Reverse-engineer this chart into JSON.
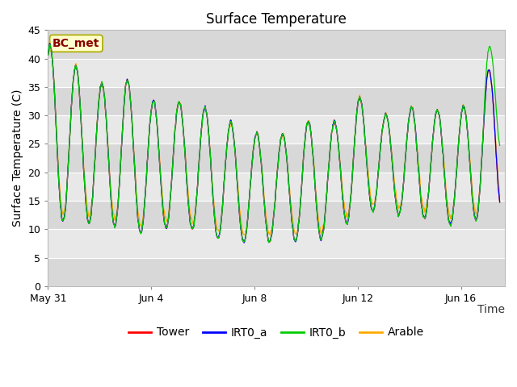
{
  "title": "Surface Temperature",
  "ylabel": "Surface Temperature (C)",
  "xlabel": "Time",
  "ylim": [
    0,
    45
  ],
  "yticks": [
    0,
    5,
    10,
    15,
    20,
    25,
    30,
    35,
    40,
    45
  ],
  "xtick_labels": [
    "May 31",
    "Jun 4",
    "Jun 8",
    "Jun 12",
    "Jun 16"
  ],
  "xtick_positions": [
    0,
    4,
    8,
    12,
    16
  ],
  "xlim": [
    0,
    17.7
  ],
  "annotation_text": "BC_met",
  "annotation_box_color": "#ffffcc",
  "annotation_border_color": "#aaaa00",
  "annotation_text_color": "#880000",
  "fig_bg_color": "#ffffff",
  "band_light": "#e8e8e8",
  "band_dark": "#d8d8d8",
  "tower_color": "#ff0000",
  "irt0a_color": "#0000ff",
  "irt0b_color": "#00cc00",
  "arable_color": "#ffaa00",
  "title_fontsize": 12,
  "axis_label_fontsize": 10,
  "tick_fontsize": 9,
  "legend_fontsize": 10,
  "day_peaks": [
    42.5,
    39,
    35.5,
    36.5,
    32.5,
    32.5,
    31.5,
    29,
    27,
    26.5,
    29,
    28.5,
    33.5,
    30,
    31.5,
    31,
    31,
    38
  ],
  "day_troughs": [
    10.5,
    12,
    10.5,
    10.5,
    8.5,
    11.5,
    9,
    8,
    7.5,
    8,
    8,
    8.5,
    13,
    13.5,
    12,
    12,
    10,
    13
  ],
  "n_days": 17.5
}
